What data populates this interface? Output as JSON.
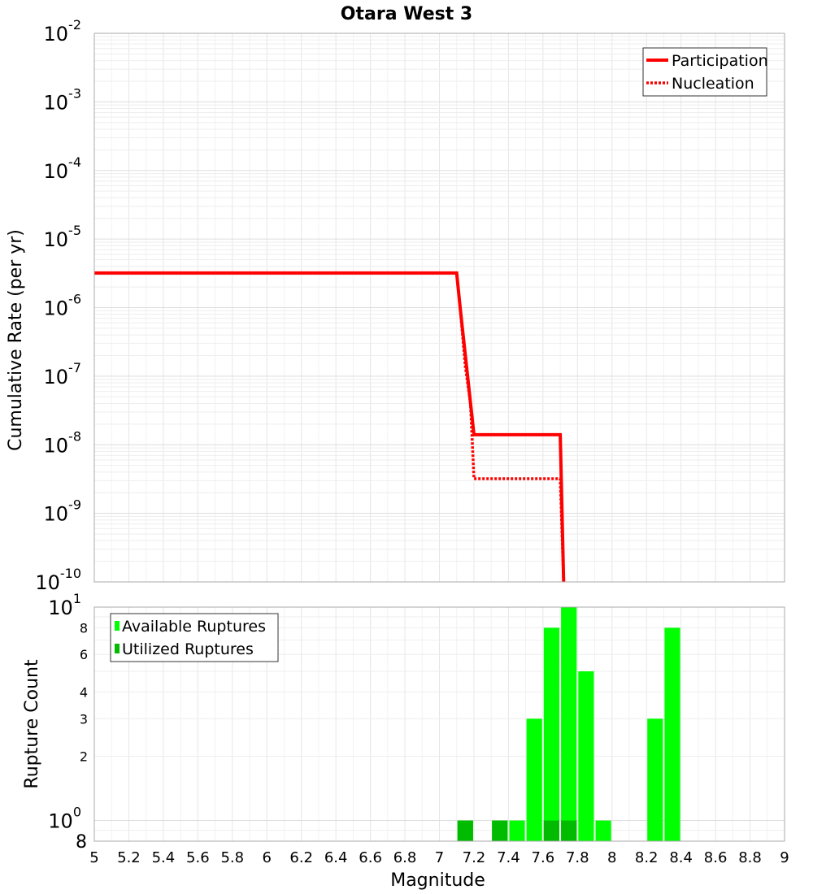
{
  "chart_data": [
    {
      "type": "line",
      "title": "Otara West 3",
      "ylabel": "Cumulative Rate (per yr)",
      "y_scale": "log",
      "ylim": [
        1e-10,
        0.01
      ],
      "xlim": [
        5,
        9
      ],
      "y_tick_labels": [
        {
          "base": "10",
          "exp": "-10"
        },
        {
          "base": "10",
          "exp": "-9"
        },
        {
          "base": "10",
          "exp": "-8"
        },
        {
          "base": "10",
          "exp": "-7"
        },
        {
          "base": "10",
          "exp": "-6"
        },
        {
          "base": "10",
          "exp": "-5"
        },
        {
          "base": "10",
          "exp": "-4"
        },
        {
          "base": "10",
          "exp": "-3"
        },
        {
          "base": "10",
          "exp": "-2"
        }
      ],
      "legend": [
        "Participation",
        "Nucleation"
      ],
      "legend_position": "top-right",
      "grid": true,
      "colors": {
        "line": "#ff0000"
      },
      "series": [
        {
          "name": "Participation",
          "style": "solid",
          "x": [
            5.0,
            7.1,
            7.12,
            7.2,
            7.7,
            7.72
          ],
          "y": [
            3.2e-06,
            3.2e-06,
            1e-06,
            1.4e-08,
            1.4e-08,
            1e-10
          ]
        },
        {
          "name": "Nucleation",
          "style": "dotted",
          "x": [
            5.0,
            7.1,
            7.12,
            7.15,
            7.18,
            7.2,
            7.7,
            7.72
          ],
          "y": [
            3.2e-06,
            3.2e-06,
            1e-06,
            1.4e-07,
            4e-08,
            3.2e-09,
            3.2e-09,
            1e-10
          ]
        }
      ]
    },
    {
      "type": "bar",
      "xlabel": "Magnitude",
      "ylabel": "Rupture Count",
      "y_scale": "log",
      "ylim": [
        0.8,
        10
      ],
      "xlim": [
        5,
        9
      ],
      "x_ticks": [
        "5",
        "5.2",
        "5.4",
        "5.6",
        "5.8",
        "6",
        "6.2",
        "6.4",
        "6.6",
        "6.8",
        "7",
        "7.2",
        "7.4",
        "7.6",
        "7.8",
        "8",
        "8.2",
        "8.4",
        "8.6",
        "8.8",
        "9"
      ],
      "y_major_tick_labels": [
        {
          "base": "10",
          "exp": "0",
          "value": 1
        },
        {
          "base": "10",
          "exp": "1",
          "value": 10
        }
      ],
      "y_minor_tick_labels": [
        {
          "label": "8",
          "value": 0.8
        },
        {
          "label": "2",
          "value": 2
        },
        {
          "label": "3",
          "value": 3
        },
        {
          "label": "4",
          "value": 4
        },
        {
          "label": "6",
          "value": 6
        },
        {
          "label": "8",
          "value": 8
        }
      ],
      "legend": [
        "Available Ruptures",
        "Utilized Ruptures"
      ],
      "legend_position": "top-left",
      "grid": true,
      "colors": {
        "available": "#00ff00",
        "utilized": "#00bb00"
      },
      "bin_width": 0.1,
      "series": [
        {
          "name": "Available Ruptures",
          "x": [
            7.1,
            7.3,
            7.4,
            7.5,
            7.6,
            7.7,
            7.8,
            7.9,
            8.2,
            8.3
          ],
          "values": [
            1,
            1,
            1,
            3,
            8,
            10,
            5,
            1,
            3,
            8
          ]
        },
        {
          "name": "Utilized Ruptures",
          "x": [
            7.1,
            7.3,
            7.6,
            7.7
          ],
          "values": [
            1,
            1,
            1,
            1
          ]
        }
      ]
    }
  ]
}
